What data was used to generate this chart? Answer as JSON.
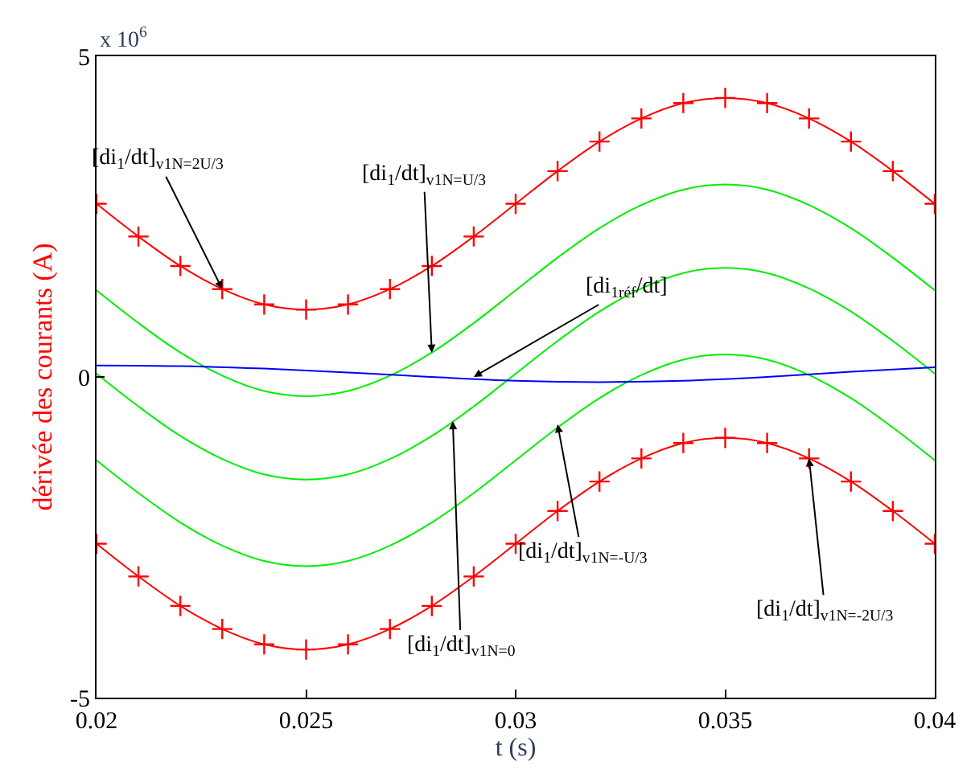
{
  "chart_data": {
    "type": "line",
    "xlabel": "t (s)",
    "ylabel": "dérivée des courants (A)",
    "x": [
      0.02,
      0.021,
      0.022,
      0.023,
      0.024,
      0.025,
      0.026,
      0.027,
      0.028,
      0.029,
      0.03,
      0.031,
      0.032,
      0.033,
      0.034,
      0.035,
      0.036,
      0.037,
      0.038,
      0.039,
      0.04
    ],
    "series": [
      {
        "color": "#ff0000",
        "marker": "cross",
        "values": [
          2.7,
          2.19,
          1.73,
          1.37,
          1.13,
          1.05,
          1.13,
          1.37,
          1.73,
          2.19,
          2.7,
          3.21,
          3.67,
          4.03,
          4.27,
          4.35,
          4.27,
          4.03,
          3.67,
          3.21,
          2.7
        ]
      },
      {
        "color": "#00ee00",
        "values": [
          1.35,
          0.84,
          0.38,
          0.02,
          -0.22,
          -0.3,
          -0.22,
          0.02,
          0.38,
          0.84,
          1.35,
          1.86,
          2.32,
          2.68,
          2.92,
          3.0,
          2.92,
          2.68,
          2.32,
          1.86,
          1.35
        ]
      },
      {
        "color": "#00ee00",
        "values": [
          0.05,
          -0.46,
          -0.92,
          -1.28,
          -1.52,
          -1.6,
          -1.52,
          -1.28,
          -0.92,
          -0.46,
          0.05,
          0.56,
          1.02,
          1.38,
          1.62,
          1.7,
          1.62,
          1.38,
          1.02,
          0.56,
          0.05
        ]
      },
      {
        "color": "#00ee00",
        "values": [
          -1.3,
          -1.81,
          -2.27,
          -2.63,
          -2.87,
          -2.95,
          -2.87,
          -2.63,
          -2.27,
          -1.81,
          -1.3,
          -0.79,
          -0.33,
          0.03,
          0.27,
          0.35,
          0.27,
          0.03,
          -0.33,
          -0.79,
          -1.3
        ]
      },
      {
        "color": "#0000ff",
        "x": [
          0.02,
          0.022,
          0.024,
          0.026,
          0.028,
          0.03,
          0.032,
          0.034,
          0.036,
          0.038,
          0.04
        ],
        "values": [
          0.18,
          0.17,
          0.13,
          0.07,
          0.0,
          -0.06,
          -0.08,
          -0.06,
          0.0,
          0.08,
          0.15
        ]
      },
      {
        "color": "#ff0000",
        "marker": "cross",
        "values": [
          -2.6,
          -3.11,
          -3.57,
          -3.93,
          -4.17,
          -4.25,
          -4.17,
          -3.93,
          -3.57,
          -3.11,
          -2.6,
          -2.09,
          -1.63,
          -1.27,
          -1.03,
          -0.95,
          -1.03,
          -1.27,
          -1.63,
          -2.09,
          -2.6
        ]
      }
    ],
    "xlim": [
      0.02,
      0.04
    ],
    "xticks": [
      0.02,
      0.025,
      0.03,
      0.035,
      0.04
    ],
    "ylim": [
      -5,
      5
    ],
    "yticks": [
      -5,
      0,
      5
    ],
    "marker": "none",
    "line_style": "solid",
    "annotations": [
      "x 10$^{6}$",
      {
        "text": "[di$_{1}$/dt]$_{v1N=2U/3}$",
        "x": 0.023,
        "y": 1.37
      },
      {
        "text": "[di$_{1}$/dt]$_{v1N=U/3}$",
        "x": 0.028,
        "y": 0.38
      },
      {
        "text": "[di$_{1réf}$/dt]",
        "x": 0.029,
        "y": 0.0
      },
      {
        "text": "[di$_{1}$/dt]$_{v1N=0}$",
        "x": 0.0285,
        "y": -0.69
      },
      {
        "text": "[di$_{1}$/dt]$_{v1N=-U/3}$",
        "x": 0.031,
        "y": -0.74
      },
      {
        "text": "[di$_{1}$/dt]$_{v1N=-2U/3}$",
        "x": 0.037,
        "y": -1.27
      }
    ]
  }
}
